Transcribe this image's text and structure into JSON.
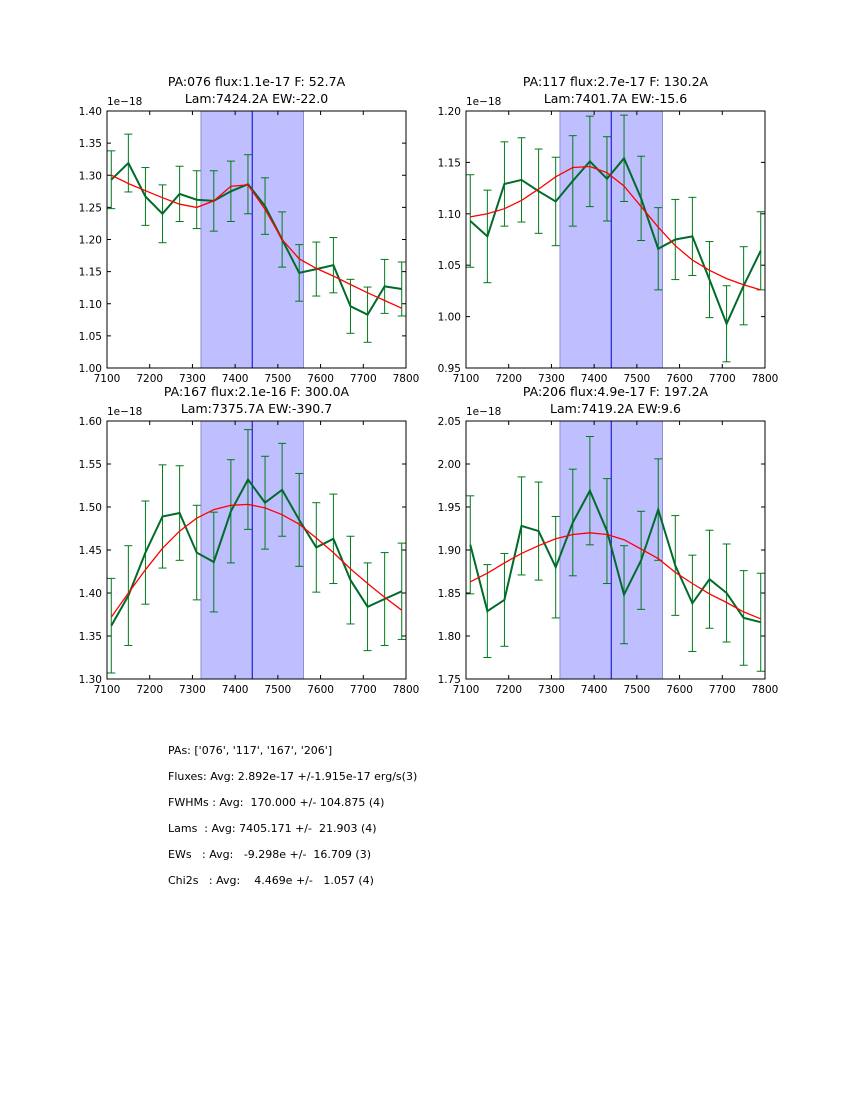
{
  "colors": {
    "data_line": "#006b2b",
    "errorbar": "#007a1a",
    "fit_line": "#ff0000",
    "band_fill": "#bfbfff",
    "band_edge": "#8f8fcf",
    "center_line": "#0000cc",
    "axis": "#000000"
  },
  "chart_data": [
    {
      "type": "line",
      "title_line1": "PA:076 flux:1.1e-17 F: 52.7A",
      "title_line2": "Lam:7424.2A EW:-22.0",
      "offset_label": "1e−18",
      "xlim": [
        7100,
        7800
      ],
      "ylim": [
        1.0,
        1.4
      ],
      "xticks": [
        7100,
        7200,
        7300,
        7400,
        7500,
        7600,
        7700,
        7800
      ],
      "yticks": [
        1.0,
        1.05,
        1.1,
        1.15,
        1.2,
        1.25,
        1.3,
        1.35,
        1.4
      ],
      "ytick_labels": [
        "1.00",
        "1.05",
        "1.10",
        "1.15",
        "1.20",
        "1.25",
        "1.30",
        "1.35",
        "1.40"
      ],
      "band": [
        7320,
        7560
      ],
      "center_line": 7440,
      "x": [
        7110,
        7150,
        7190,
        7230,
        7270,
        7310,
        7350,
        7390,
        7430,
        7470,
        7510,
        7550,
        7590,
        7630,
        7670,
        7710,
        7750,
        7790
      ],
      "y": [
        1.293,
        1.319,
        1.267,
        1.24,
        1.271,
        1.262,
        1.26,
        1.275,
        1.286,
        1.252,
        1.2,
        1.148,
        1.154,
        1.16,
        1.096,
        1.083,
        1.127,
        1.123
      ],
      "yerr": [
        0.045,
        0.045,
        0.045,
        0.045,
        0.043,
        0.045,
        0.047,
        0.047,
        0.046,
        0.044,
        0.043,
        0.044,
        0.042,
        0.043,
        0.042,
        0.043,
        0.042,
        0.042
      ],
      "fit_x": [
        7110,
        7150,
        7190,
        7230,
        7270,
        7310,
        7350,
        7390,
        7430,
        7470,
        7510,
        7550,
        7590,
        7630,
        7670,
        7710,
        7750,
        7790
      ],
      "fit_y": [
        1.3,
        1.287,
        1.276,
        1.265,
        1.255,
        1.25,
        1.26,
        1.283,
        1.285,
        1.247,
        1.2,
        1.17,
        1.155,
        1.143,
        1.13,
        1.117,
        1.105,
        1.093
      ]
    },
    {
      "type": "line",
      "title_line1": "PA:117 flux:2.7e-17 F: 130.2A",
      "title_line2": "Lam:7401.7A EW:-15.6",
      "offset_label": "1e−18",
      "xlim": [
        7100,
        7800
      ],
      "ylim": [
        0.95,
        1.2
      ],
      "xticks": [
        7100,
        7200,
        7300,
        7400,
        7500,
        7600,
        7700,
        7800
      ],
      "yticks": [
        0.95,
        1.0,
        1.05,
        1.1,
        1.15,
        1.2
      ],
      "ytick_labels": [
        "0.95",
        "1.00",
        "1.05",
        "1.10",
        "1.15",
        "1.20"
      ],
      "band": [
        7320,
        7560
      ],
      "center_line": 7440,
      "x": [
        7110,
        7150,
        7190,
        7230,
        7270,
        7310,
        7350,
        7390,
        7430,
        7470,
        7510,
        7550,
        7590,
        7630,
        7670,
        7710,
        7750,
        7790
      ],
      "y": [
        1.093,
        1.078,
        1.129,
        1.133,
        1.122,
        1.112,
        1.132,
        1.151,
        1.134,
        1.154,
        1.115,
        1.066,
        1.075,
        1.078,
        1.036,
        0.993,
        1.03,
        1.064
      ],
      "yerr": [
        0.045,
        0.045,
        0.041,
        0.041,
        0.041,
        0.043,
        0.044,
        0.044,
        0.041,
        0.042,
        0.041,
        0.04,
        0.039,
        0.038,
        0.037,
        0.037,
        0.038,
        0.038
      ],
      "fit_x": [
        7110,
        7150,
        7190,
        7230,
        7270,
        7310,
        7350,
        7390,
        7430,
        7470,
        7510,
        7550,
        7590,
        7630,
        7670,
        7710,
        7750,
        7790
      ],
      "fit_y": [
        1.097,
        1.1,
        1.105,
        1.113,
        1.124,
        1.136,
        1.145,
        1.146,
        1.14,
        1.127,
        1.107,
        1.087,
        1.069,
        1.055,
        1.045,
        1.037,
        1.031,
        1.026
      ]
    },
    {
      "type": "line",
      "title_line1": "PA:167 flux:2.1e-16 F: 300.0A",
      "title_line2": "Lam:7375.7A EW:-390.7",
      "offset_label": "1e−18",
      "xlim": [
        7100,
        7800
      ],
      "ylim": [
        1.3,
        1.6
      ],
      "xticks": [
        7100,
        7200,
        7300,
        7400,
        7500,
        7600,
        7700,
        7800
      ],
      "yticks": [
        1.3,
        1.35,
        1.4,
        1.45,
        1.5,
        1.55,
        1.6
      ],
      "ytick_labels": [
        "1.30",
        "1.35",
        "1.40",
        "1.45",
        "1.50",
        "1.55",
        "1.60"
      ],
      "band": [
        7320,
        7560
      ],
      "center_line": 7440,
      "x": [
        7110,
        7150,
        7190,
        7230,
        7270,
        7310,
        7350,
        7390,
        7430,
        7470,
        7510,
        7550,
        7590,
        7630,
        7670,
        7710,
        7750,
        7790
      ],
      "y": [
        1.362,
        1.397,
        1.447,
        1.489,
        1.493,
        1.447,
        1.436,
        1.495,
        1.532,
        1.505,
        1.52,
        1.485,
        1.453,
        1.463,
        1.415,
        1.384,
        1.393,
        1.402
      ],
      "yerr": [
        0.055,
        0.058,
        0.06,
        0.06,
        0.055,
        0.055,
        0.058,
        0.06,
        0.058,
        0.054,
        0.054,
        0.054,
        0.052,
        0.052,
        0.051,
        0.051,
        0.054,
        0.056
      ],
      "fit_x": [
        7110,
        7150,
        7190,
        7230,
        7270,
        7310,
        7350,
        7390,
        7430,
        7470,
        7510,
        7550,
        7590,
        7630,
        7670,
        7710,
        7750,
        7790
      ],
      "fit_y": [
        1.372,
        1.4,
        1.427,
        1.452,
        1.472,
        1.487,
        1.497,
        1.502,
        1.503,
        1.499,
        1.491,
        1.48,
        1.464,
        1.447,
        1.428,
        1.411,
        1.395,
        1.38
      ]
    },
    {
      "type": "line",
      "title_line1": "PA:206 flux:4.9e-17 F: 197.2A",
      "title_line2": "Lam:7419.2A EW:9.6",
      "offset_label": "1e−18",
      "xlim": [
        7100,
        7800
      ],
      "ylim": [
        1.75,
        2.05
      ],
      "xticks": [
        7100,
        7200,
        7300,
        7400,
        7500,
        7600,
        7700,
        7800
      ],
      "yticks": [
        1.75,
        1.8,
        1.85,
        1.9,
        1.95,
        2.0,
        2.05
      ],
      "ytick_labels": [
        "1.75",
        "1.80",
        "1.85",
        "1.90",
        "1.95",
        "2.00",
        "2.05"
      ],
      "band": [
        7320,
        7560
      ],
      "center_line": 7440,
      "x": [
        7110,
        7150,
        7190,
        7230,
        7270,
        7310,
        7350,
        7390,
        7430,
        7470,
        7510,
        7550,
        7590,
        7630,
        7670,
        7710,
        7750,
        7790
      ],
      "y": [
        1.906,
        1.829,
        1.842,
        1.928,
        1.922,
        1.88,
        1.932,
        1.969,
        1.922,
        1.848,
        1.888,
        1.947,
        1.882,
        1.838,
        1.866,
        1.85,
        1.821,
        1.816
      ],
      "yerr": [
        0.057,
        0.054,
        0.054,
        0.057,
        0.057,
        0.059,
        0.062,
        0.063,
        0.061,
        0.057,
        0.057,
        0.059,
        0.058,
        0.056,
        0.057,
        0.057,
        0.055,
        0.057
      ],
      "fit_x": [
        7110,
        7150,
        7190,
        7230,
        7270,
        7310,
        7350,
        7390,
        7430,
        7470,
        7510,
        7550,
        7590,
        7630,
        7670,
        7710,
        7750,
        7790
      ],
      "fit_y": [
        1.863,
        1.873,
        1.885,
        1.896,
        1.905,
        1.913,
        1.918,
        1.92,
        1.918,
        1.912,
        1.901,
        1.89,
        1.874,
        1.861,
        1.849,
        1.839,
        1.828,
        1.82
      ]
    }
  ],
  "stats": {
    "lines": [
      "PAs: ['076', '117', '167', '206']",
      "Fluxes: Avg: 2.892e-17 +/-1.915e-17 erg/s(3)",
      "FWHMs : Avg:  170.000 +/- 104.875 (4)",
      "Lams  : Avg: 7405.171 +/-  21.903 (4)",
      "EWs   : Avg:   -9.298e +/-  16.709 (3)",
      "Chi2s   : Avg:    4.469e +/-   1.057 (4)"
    ]
  }
}
